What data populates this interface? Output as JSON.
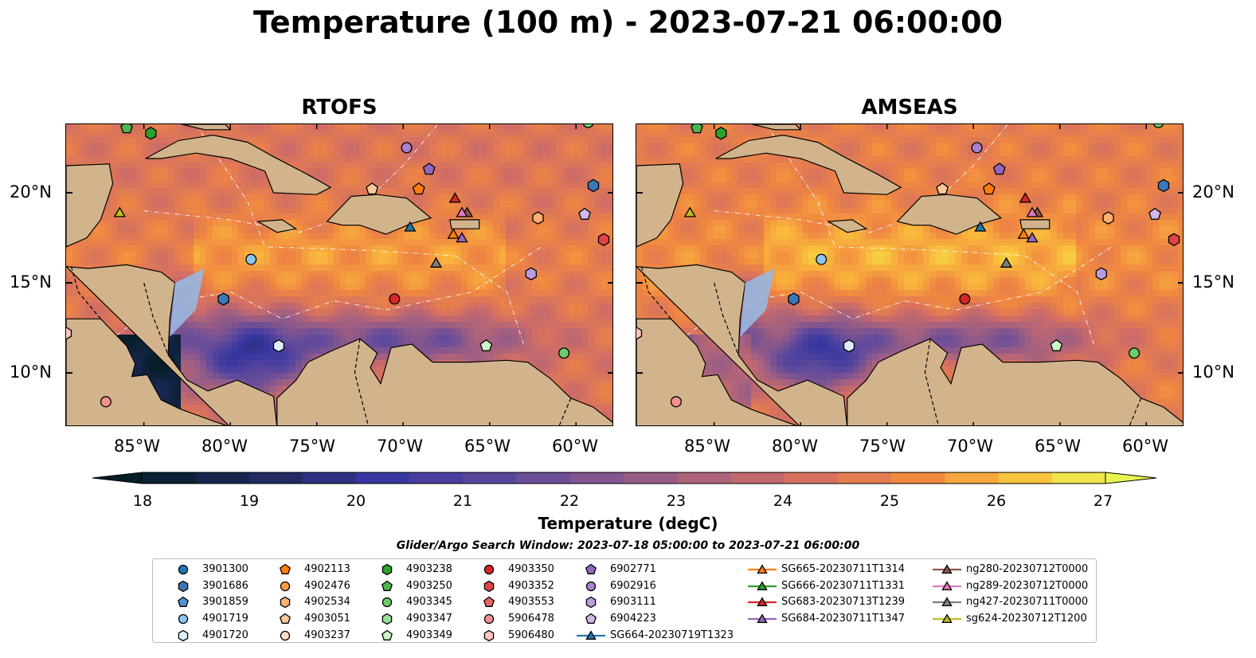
{
  "title": "Temperature (100 m) - 2023-07-21 06:00:00",
  "panels": [
    {
      "title": "RTOFS",
      "variant": 0
    },
    {
      "title": "AMSEAS",
      "variant": 1
    }
  ],
  "lat_ticks": [
    "20°N",
    "15°N",
    "10°N"
  ],
  "lon_ticks": [
    "85°W",
    "80°W",
    "75°W",
    "70°W",
    "65°W",
    "60°W"
  ],
  "colorbar": {
    "label": "Temperature (degC)",
    "ticks": [
      "18",
      "19",
      "20",
      "21",
      "22",
      "23",
      "24",
      "25",
      "26",
      "27"
    ],
    "min": 18,
    "max": 27,
    "step": 0.5,
    "extend": "both"
  },
  "search_window": "Glider/Argo Search Window: 2023-07-18 05:00:00 to 2023-07-21 06:00:00",
  "colors": {
    "land": "#d2b48c",
    "ocean": "#99b8e0"
  },
  "legend": [
    {
      "label": "3901300",
      "marker": "circle",
      "color": "#1f77b4"
    },
    {
      "label": "3901686",
      "marker": "hexagon",
      "color": "#3a78b8"
    },
    {
      "label": "3901859",
      "marker": "pentagon",
      "color": "#4f93d0"
    },
    {
      "label": "4901719",
      "marker": "circle",
      "color": "#8fc5f0"
    },
    {
      "label": "4901720",
      "marker": "hexagon",
      "color": "#ddeeff"
    },
    {
      "label": "4902113",
      "marker": "pentagon",
      "color": "#ff7f0e"
    },
    {
      "label": "4902476",
      "marker": "circle",
      "color": "#ff9a40"
    },
    {
      "label": "4902534",
      "marker": "hexagon",
      "color": "#ffb070"
    },
    {
      "label": "4903051",
      "marker": "pentagon",
      "color": "#ffc898"
    },
    {
      "label": "4903237",
      "marker": "circle",
      "color": "#ffe0c4"
    },
    {
      "label": "4903238",
      "marker": "hexagon",
      "color": "#2ca02c"
    },
    {
      "label": "4903250",
      "marker": "pentagon",
      "color": "#4cb64c"
    },
    {
      "label": "4903345",
      "marker": "circle",
      "color": "#6ccc6c"
    },
    {
      "label": "4903347",
      "marker": "hexagon",
      "color": "#98e098"
    },
    {
      "label": "4903349",
      "marker": "pentagon",
      "color": "#ccf5c4"
    },
    {
      "label": "4903350",
      "marker": "circle",
      "color": "#d62728"
    },
    {
      "label": "4903352",
      "marker": "hexagon",
      "color": "#e04446"
    },
    {
      "label": "4903553",
      "marker": "pentagon",
      "color": "#ea6464"
    },
    {
      "label": "5906478",
      "marker": "circle",
      "color": "#f49090"
    },
    {
      "label": "5906480",
      "marker": "hexagon",
      "color": "#ffc4c0"
    },
    {
      "label": "6902771",
      "marker": "pentagon",
      "color": "#9467bd"
    },
    {
      "label": "6902916",
      "marker": "circle",
      "color": "#a880cc"
    },
    {
      "label": "6903111",
      "marker": "hexagon",
      "color": "#bc9cdc"
    },
    {
      "label": "6904223",
      "marker": "pentagon",
      "color": "#d0b8ec"
    },
    {
      "label": "SG664-20230719T1323",
      "marker": "triangle-line",
      "color": "#1f77b4"
    },
    {
      "label": "SG665-20230711T1314",
      "marker": "triangle-line",
      "color": "#ff7f0e"
    },
    {
      "label": "SG666-20230711T1331",
      "marker": "triangle-line",
      "color": "#2ca02c"
    },
    {
      "label": "SG683-20230713T1239",
      "marker": "triangle-line",
      "color": "#d62728"
    },
    {
      "label": "SG684-20230711T1347",
      "marker": "triangle-line",
      "color": "#9467bd"
    },
    {
      "label": "ng280-20230712T0000",
      "marker": "triangle-line",
      "color": "#8c564b"
    },
    {
      "label": "ng289-20230712T0000",
      "marker": "triangle-line",
      "color": "#e377c2"
    },
    {
      "label": "ng427-20230711T0000",
      "marker": "triangle-line",
      "color": "#7f7f7f"
    },
    {
      "label": "sg624-20230712T1200",
      "marker": "triangle-line",
      "color": "#bcbd22"
    }
  ],
  "map_markers": [
    {
      "lon": -87.2,
      "lat": 8.4,
      "marker": "circle",
      "color": "#f49090"
    },
    {
      "lon": -89.5,
      "lat": 12.2,
      "marker": "hexagon",
      "color": "#ffc4c0"
    },
    {
      "lon": -80.4,
      "lat": 14.1,
      "marker": "hexagon",
      "color": "#3a78b8"
    },
    {
      "lon": -78.8,
      "lat": 16.3,
      "marker": "circle",
      "color": "#8fc5f0"
    },
    {
      "lon": -77.2,
      "lat": 11.5,
      "marker": "hexagon",
      "color": "#ddeeff"
    },
    {
      "lon": -84.6,
      "lat": 23.3,
      "marker": "hexagon",
      "color": "#2ca02c"
    },
    {
      "lon": -86.0,
      "lat": 23.6,
      "marker": "pentagon",
      "color": "#4cb64c"
    },
    {
      "lon": -71.8,
      "lat": 20.2,
      "marker": "pentagon",
      "color": "#ffc898"
    },
    {
      "lon": -69.8,
      "lat": 22.5,
      "marker": "circle",
      "color": "#a880cc"
    },
    {
      "lon": -69.1,
      "lat": 20.2,
      "marker": "pentagon",
      "color": "#ff7f0e"
    },
    {
      "lon": -68.5,
      "lat": 21.3,
      "marker": "pentagon",
      "color": "#9467bd"
    },
    {
      "lon": -70.5,
      "lat": 14.1,
      "marker": "circle",
      "color": "#d62728"
    },
    {
      "lon": -65.2,
      "lat": 11.5,
      "marker": "pentagon",
      "color": "#ccf5c4"
    },
    {
      "lon": -62.6,
      "lat": 15.5,
      "marker": "hexagon",
      "color": "#bc9cdc"
    },
    {
      "lon": -62.2,
      "lat": 18.6,
      "marker": "hexagon",
      "color": "#ffb070"
    },
    {
      "lon": -60.7,
      "lat": 11.1,
      "marker": "circle",
      "color": "#6ccc6c"
    },
    {
      "lon": -59.5,
      "lat": 18.8,
      "marker": "pentagon",
      "color": "#d0b8ec"
    },
    {
      "lon": -59.0,
      "lat": 20.4,
      "marker": "hexagon",
      "color": "#3a78b8"
    },
    {
      "lon": -58.4,
      "lat": 17.4,
      "marker": "hexagon",
      "color": "#e04446"
    },
    {
      "lon": -59.3,
      "lat": 23.9,
      "marker": "circle",
      "color": "#6ccc6c"
    },
    {
      "lon": -86.4,
      "lat": 18.9,
      "marker": "triangle",
      "color": "#bcbd22"
    },
    {
      "lon": -69.6,
      "lat": 18.1,
      "marker": "triangle",
      "color": "#1f77b4"
    },
    {
      "lon": -67.1,
      "lat": 17.7,
      "marker": "triangle",
      "color": "#ff7f0e"
    },
    {
      "lon": -67.0,
      "lat": 19.7,
      "marker": "triangle",
      "color": "#d62728"
    },
    {
      "lon": -66.6,
      "lat": 17.5,
      "marker": "triangle",
      "color": "#9467bd"
    },
    {
      "lon": -66.3,
      "lat": 18.9,
      "marker": "triangle",
      "color": "#8c564b"
    },
    {
      "lon": -66.6,
      "lat": 18.9,
      "marker": "triangle",
      "color": "#e377c2"
    },
    {
      "lon": -68.1,
      "lat": 16.1,
      "marker": "triangle",
      "color": "#7f7f7f"
    }
  ]
}
